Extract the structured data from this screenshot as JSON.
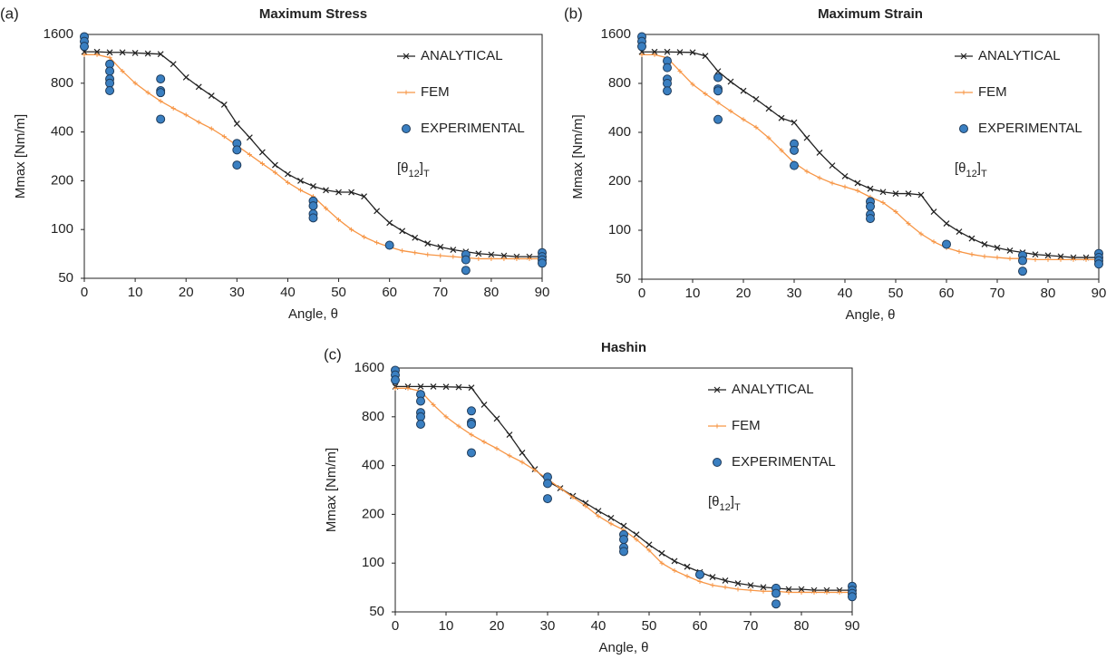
{
  "chart_data": [
    {
      "type": "line",
      "panel_label": "(a)",
      "title": "Maximum Stress",
      "xlabel": "Angle, θ",
      "ylabel": "Mmax [Nm/m]",
      "xlim": [
        0,
        90
      ],
      "xticks": [
        0,
        10,
        20,
        30,
        40,
        50,
        60,
        70,
        80,
        90
      ],
      "ylim": [
        50,
        1600
      ],
      "yticks": [
        50,
        100,
        200,
        400,
        800,
        1600
      ],
      "log_y": true,
      "annotation": [
        "[θ",
        "12",
        "]",
        "T"
      ],
      "x": [
        0,
        2.5,
        5,
        7.5,
        10,
        12.5,
        15,
        17.5,
        20,
        22.5,
        25,
        27.5,
        30,
        32.5,
        35,
        37.5,
        40,
        42.5,
        45,
        47.5,
        50,
        52.5,
        55,
        57.5,
        60,
        62.5,
        65,
        67.5,
        70,
        72.5,
        75,
        77.5,
        80,
        82.5,
        85,
        87.5,
        90
      ],
      "series": [
        {
          "name": "ANALYTICAL",
          "color": "#222222",
          "marker": "x",
          "values": [
            1250,
            1250,
            1240,
            1240,
            1230,
            1220,
            1210,
            1050,
            870,
            760,
            670,
            590,
            450,
            370,
            300,
            250,
            220,
            200,
            185,
            175,
            170,
            170,
            160,
            130,
            110,
            98,
            89,
            82,
            78,
            75,
            73,
            71,
            70,
            69,
            68,
            68,
            68
          ]
        },
        {
          "name": "FEM",
          "color": "#f79646",
          "marker": "plus",
          "values": [
            1200,
            1200,
            1150,
            950,
            800,
            700,
            620,
            560,
            510,
            460,
            420,
            375,
            330,
            290,
            255,
            225,
            195,
            175,
            160,
            135,
            115,
            100,
            90,
            83,
            78,
            74,
            72,
            70,
            69,
            68,
            67,
            66,
            66,
            66,
            66,
            66,
            66
          ]
        },
        {
          "name": "EXPERIMENTAL",
          "color": "#3a7fc1",
          "type": "scatter",
          "x": [
            0,
            0,
            0,
            5,
            5,
            5,
            5,
            5,
            15,
            15,
            15,
            15,
            30,
            30,
            30,
            45,
            45,
            45,
            45,
            60,
            75,
            75,
            75,
            90,
            90,
            90,
            90
          ],
          "values": [
            1550,
            1450,
            1350,
            1050,
            950,
            850,
            800,
            720,
            850,
            720,
            700,
            480,
            340,
            310,
            250,
            150,
            140,
            125,
            118,
            80,
            70,
            65,
            56,
            72,
            68,
            65,
            62
          ]
        }
      ]
    },
    {
      "type": "line",
      "panel_label": "(b)",
      "title": "Maximum Strain",
      "xlabel": "Angle, θ",
      "ylabel": "Mmax [Nm/m]",
      "xlim": [
        0,
        90
      ],
      "xticks": [
        0,
        10,
        20,
        30,
        40,
        50,
        60,
        70,
        80,
        90
      ],
      "ylim": [
        50,
        1600
      ],
      "yticks": [
        50,
        100,
        200,
        400,
        800,
        1600
      ],
      "log_y": true,
      "annotation": [
        "[θ",
        "12",
        "]",
        "T"
      ],
      "x": [
        0,
        2.5,
        5,
        7.5,
        10,
        12.5,
        15,
        17.5,
        20,
        22.5,
        25,
        27.5,
        30,
        32.5,
        35,
        37.5,
        40,
        42.5,
        45,
        47.5,
        50,
        52.5,
        55,
        57.5,
        60,
        62.5,
        65,
        67.5,
        70,
        72.5,
        75,
        77.5,
        80,
        82.5,
        85,
        87.5,
        90
      ],
      "series": [
        {
          "name": "ANALYTICAL",
          "color": "#222222",
          "marker": "x",
          "values": [
            1250,
            1250,
            1250,
            1245,
            1240,
            1180,
            950,
            820,
            720,
            640,
            560,
            490,
            460,
            370,
            300,
            250,
            215,
            195,
            180,
            172,
            168,
            168,
            165,
            130,
            110,
            98,
            89,
            82,
            78,
            75,
            73,
            71,
            70,
            69,
            68,
            68,
            68
          ]
        },
        {
          "name": "FEM",
          "color": "#f79646",
          "marker": "plus",
          "values": [
            1200,
            1200,
            1150,
            950,
            790,
            690,
            610,
            540,
            480,
            430,
            370,
            310,
            260,
            230,
            210,
            195,
            185,
            175,
            160,
            148,
            130,
            110,
            95,
            85,
            78,
            74,
            71,
            69,
            68,
            67,
            67,
            66,
            66,
            66,
            66,
            66,
            66
          ]
        },
        {
          "name": "EXPERIMENTAL",
          "color": "#3a7fc1",
          "type": "scatter",
          "x": [
            0,
            0,
            0,
            5,
            5,
            5,
            5,
            5,
            15,
            15,
            15,
            15,
            30,
            30,
            30,
            45,
            45,
            45,
            45,
            60,
            75,
            75,
            75,
            90,
            90,
            90,
            90
          ],
          "values": [
            1550,
            1450,
            1350,
            1100,
            1000,
            850,
            800,
            720,
            870,
            740,
            720,
            480,
            340,
            310,
            250,
            150,
            140,
            125,
            118,
            82,
            70,
            65,
            56,
            72,
            68,
            65,
            62
          ]
        }
      ]
    },
    {
      "type": "line",
      "panel_label": "(c)",
      "title": "Hashin",
      "xlabel": "Angle, θ",
      "ylabel": "Mmax [Nm/m]",
      "xlim": [
        0,
        90
      ],
      "xticks": [
        0,
        10,
        20,
        30,
        40,
        50,
        60,
        70,
        80,
        90
      ],
      "ylim": [
        50,
        1600
      ],
      "yticks": [
        50,
        100,
        200,
        400,
        800,
        1600
      ],
      "log_y": true,
      "annotation": [
        "[θ",
        "12",
        "]",
        "T"
      ],
      "x": [
        0,
        2.5,
        5,
        7.5,
        10,
        12.5,
        15,
        17.5,
        20,
        22.5,
        25,
        27.5,
        30,
        32.5,
        35,
        37.5,
        40,
        42.5,
        45,
        47.5,
        50,
        52.5,
        55,
        57.5,
        60,
        62.5,
        65,
        67.5,
        70,
        72.5,
        75,
        77.5,
        80,
        82.5,
        85,
        87.5,
        90
      ],
      "series": [
        {
          "name": "ANALYTICAL",
          "color": "#222222",
          "marker": "x",
          "values": [
            1230,
            1230,
            1230,
            1230,
            1225,
            1220,
            1210,
            950,
            780,
            620,
            480,
            380,
            320,
            290,
            260,
            235,
            210,
            190,
            170,
            150,
            130,
            115,
            103,
            95,
            88,
            82,
            78,
            75,
            73,
            71,
            70,
            69,
            69,
            68,
            68,
            68,
            68
          ]
        },
        {
          "name": "FEM",
          "color": "#f79646",
          "marker": "plus",
          "values": [
            1200,
            1200,
            1150,
            950,
            800,
            700,
            620,
            560,
            510,
            460,
            420,
            375,
            330,
            290,
            255,
            225,
            195,
            175,
            160,
            140,
            120,
            100,
            90,
            83,
            77,
            73,
            71,
            69,
            68,
            67,
            67,
            66,
            66,
            66,
            66,
            66,
            66
          ]
        },
        {
          "name": "EXPERIMENTAL",
          "color": "#3a7fc1",
          "type": "scatter",
          "x": [
            0,
            0,
            0,
            5,
            5,
            5,
            5,
            5,
            15,
            15,
            15,
            15,
            30,
            30,
            30,
            45,
            45,
            45,
            45,
            60,
            75,
            75,
            75,
            90,
            90,
            90,
            90
          ],
          "values": [
            1550,
            1450,
            1350,
            1100,
            1000,
            850,
            800,
            720,
            870,
            740,
            720,
            480,
            340,
            310,
            250,
            150,
            140,
            125,
            118,
            85,
            70,
            65,
            56,
            72,
            68,
            65,
            62
          ]
        }
      ]
    }
  ]
}
